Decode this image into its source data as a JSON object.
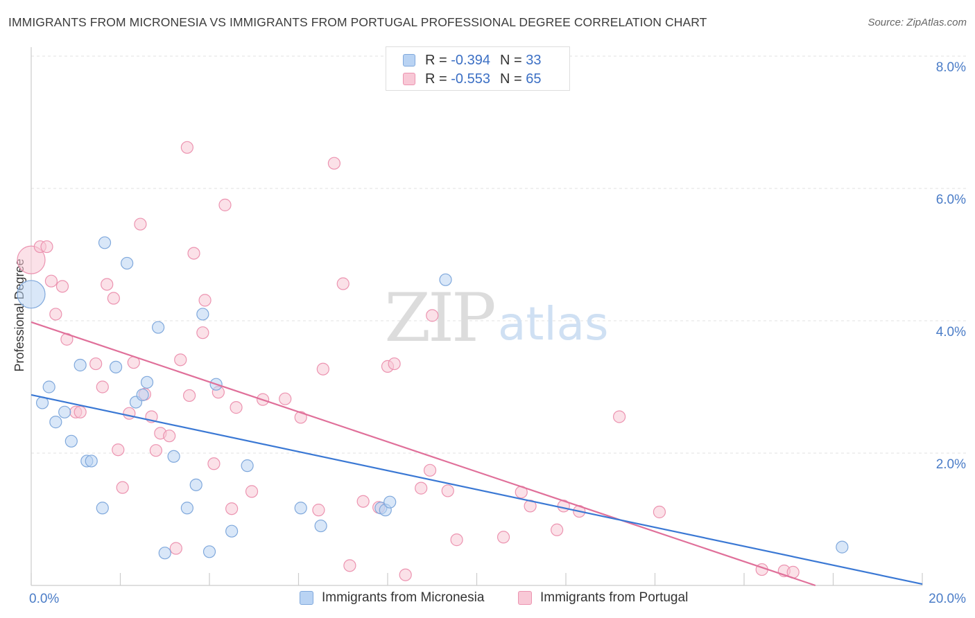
{
  "title": "IMMIGRANTS FROM MICRONESIA VS IMMIGRANTS FROM PORTUGAL PROFESSIONAL DEGREE CORRELATION CHART",
  "source": "Source: ZipAtlas.com",
  "watermark": {
    "zip": "ZIP",
    "atlas": "atlas"
  },
  "legend": {
    "rows": [
      {
        "r_label": "R =",
        "r_value": "-0.394",
        "n_label": "N =",
        "n_value": "33"
      },
      {
        "r_label": "R =",
        "r_value": "-0.553",
        "n_label": "N =",
        "n_value": "65"
      }
    ]
  },
  "colors": {
    "micronesia_fill": "#b9d3f3",
    "micronesia_stroke": "#7fa8dc",
    "micronesia_line": "#3a78d4",
    "portugal_fill": "#f8c8d6",
    "portugal_stroke": "#ec93b0",
    "portugal_line": "#e0709a",
    "tick_text": "#4a7cc7",
    "grid": "#e0e0e0"
  },
  "chart_data": {
    "type": "scatter",
    "title": "IMMIGRANTS FROM MICRONESIA VS IMMIGRANTS FROM PORTUGAL PROFESSIONAL DEGREE CORRELATION CHART",
    "xlabel": "",
    "ylabel": "Professional Degree",
    "xlim": [
      0,
      20
    ],
    "ylim": [
      0,
      8.0
    ],
    "x_tick_labels": [
      "0.0%",
      "20.0%"
    ],
    "y_ticks": [
      2.0,
      4.0,
      6.0,
      8.0
    ],
    "y_tick_labels": [
      "2.0%",
      "4.0%",
      "6.0%",
      "8.0%"
    ],
    "grid": true,
    "legend_position": "top-center",
    "series": [
      {
        "name": "Immigrants from Micronesia",
        "trend": {
          "x": [
            0,
            20
          ],
          "y": [
            2.88,
            0.02
          ]
        },
        "points": [
          {
            "x": 0.0,
            "y": 4.4,
            "big": true
          },
          {
            "x": 0.25,
            "y": 2.76
          },
          {
            "x": 0.4,
            "y": 3.0
          },
          {
            "x": 0.55,
            "y": 2.47
          },
          {
            "x": 0.75,
            "y": 2.62
          },
          {
            "x": 0.9,
            "y": 2.18
          },
          {
            "x": 1.1,
            "y": 3.33
          },
          {
            "x": 1.25,
            "y": 1.88
          },
          {
            "x": 1.35,
            "y": 1.88
          },
          {
            "x": 1.6,
            "y": 1.17
          },
          {
            "x": 1.65,
            "y": 5.18
          },
          {
            "x": 1.9,
            "y": 3.3
          },
          {
            "x": 2.15,
            "y": 4.87
          },
          {
            "x": 2.35,
            "y": 2.77
          },
          {
            "x": 2.5,
            "y": 2.88
          },
          {
            "x": 2.6,
            "y": 3.07
          },
          {
            "x": 2.85,
            "y": 3.9
          },
          {
            "x": 3.0,
            "y": 0.49
          },
          {
            "x": 3.2,
            "y": 1.95
          },
          {
            "x": 3.5,
            "y": 1.17
          },
          {
            "x": 3.7,
            "y": 1.52
          },
          {
            "x": 3.85,
            "y": 4.1
          },
          {
            "x": 4.0,
            "y": 0.51
          },
          {
            "x": 4.15,
            "y": 3.04
          },
          {
            "x": 4.5,
            "y": 0.82
          },
          {
            "x": 4.85,
            "y": 1.81
          },
          {
            "x": 6.05,
            "y": 1.17
          },
          {
            "x": 6.5,
            "y": 0.9
          },
          {
            "x": 7.85,
            "y": 1.17
          },
          {
            "x": 7.95,
            "y": 1.14
          },
          {
            "x": 8.05,
            "y": 1.26
          },
          {
            "x": 9.3,
            "y": 4.62
          },
          {
            "x": 18.2,
            "y": 0.58
          }
        ]
      },
      {
        "name": "Immigrants from Portugal",
        "trend": {
          "x": [
            0,
            17.6
          ],
          "y": [
            3.98,
            0.0
          ]
        },
        "points": [
          {
            "x": 0.0,
            "y": 4.92,
            "big": true
          },
          {
            "x": 0.2,
            "y": 5.12
          },
          {
            "x": 0.35,
            "y": 5.12
          },
          {
            "x": 0.45,
            "y": 4.6
          },
          {
            "x": 0.55,
            "y": 4.1
          },
          {
            "x": 0.7,
            "y": 4.52
          },
          {
            "x": 0.8,
            "y": 3.72
          },
          {
            "x": 1.0,
            "y": 2.62
          },
          {
            "x": 1.1,
            "y": 2.62
          },
          {
            "x": 1.45,
            "y": 3.35
          },
          {
            "x": 1.6,
            "y": 3.0
          },
          {
            "x": 1.7,
            "y": 4.55
          },
          {
            "x": 1.85,
            "y": 4.34
          },
          {
            "x": 1.95,
            "y": 2.05
          },
          {
            "x": 2.05,
            "y": 1.48
          },
          {
            "x": 2.2,
            "y": 2.6
          },
          {
            "x": 2.3,
            "y": 3.37
          },
          {
            "x": 2.45,
            "y": 5.46
          },
          {
            "x": 2.55,
            "y": 2.89
          },
          {
            "x": 2.7,
            "y": 2.55
          },
          {
            "x": 2.8,
            "y": 2.04
          },
          {
            "x": 2.9,
            "y": 2.3
          },
          {
            "x": 3.1,
            "y": 2.26
          },
          {
            "x": 3.25,
            "y": 0.56
          },
          {
            "x": 3.35,
            "y": 3.41
          },
          {
            "x": 3.5,
            "y": 6.62
          },
          {
            "x": 3.55,
            "y": 2.87
          },
          {
            "x": 3.65,
            "y": 5.02
          },
          {
            "x": 3.85,
            "y": 3.82
          },
          {
            "x": 3.9,
            "y": 4.31
          },
          {
            "x": 4.1,
            "y": 1.84
          },
          {
            "x": 4.2,
            "y": 2.92
          },
          {
            "x": 4.35,
            "y": 5.75
          },
          {
            "x": 4.5,
            "y": 1.16
          },
          {
            "x": 4.6,
            "y": 2.69
          },
          {
            "x": 4.95,
            "y": 1.42
          },
          {
            "x": 5.2,
            "y": 2.81
          },
          {
            "x": 5.7,
            "y": 2.82
          },
          {
            "x": 6.05,
            "y": 2.54
          },
          {
            "x": 6.45,
            "y": 1.14
          },
          {
            "x": 6.55,
            "y": 3.27
          },
          {
            "x": 6.8,
            "y": 6.38
          },
          {
            "x": 7.0,
            "y": 4.56
          },
          {
            "x": 7.15,
            "y": 0.3
          },
          {
            "x": 7.45,
            "y": 1.27
          },
          {
            "x": 7.8,
            "y": 1.18
          },
          {
            "x": 8.0,
            "y": 3.31
          },
          {
            "x": 8.15,
            "y": 3.35
          },
          {
            "x": 8.4,
            "y": 0.16
          },
          {
            "x": 8.75,
            "y": 1.47
          },
          {
            "x": 8.95,
            "y": 1.74
          },
          {
            "x": 9.0,
            "y": 4.08
          },
          {
            "x": 9.35,
            "y": 1.43
          },
          {
            "x": 9.55,
            "y": 0.69
          },
          {
            "x": 10.6,
            "y": 0.73
          },
          {
            "x": 11.0,
            "y": 1.41
          },
          {
            "x": 11.2,
            "y": 1.2
          },
          {
            "x": 11.8,
            "y": 0.84
          },
          {
            "x": 11.95,
            "y": 1.2
          },
          {
            "x": 12.3,
            "y": 1.12
          },
          {
            "x": 13.2,
            "y": 2.55
          },
          {
            "x": 14.1,
            "y": 1.11
          },
          {
            "x": 16.4,
            "y": 0.24
          },
          {
            "x": 16.9,
            "y": 0.22
          },
          {
            "x": 17.1,
            "y": 0.2
          }
        ]
      }
    ]
  }
}
